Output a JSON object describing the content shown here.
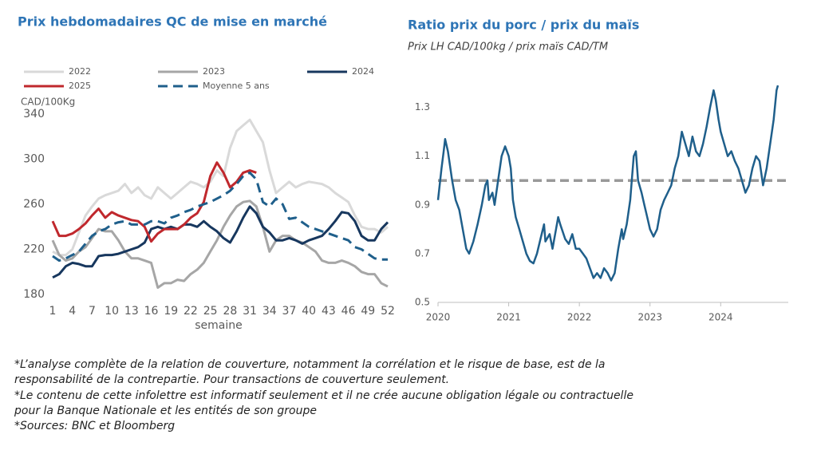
{
  "chart_data": [
    {
      "type": "line",
      "title": "Prix hebdomadaires QC de mise en marché",
      "ylabel": "CAD/100Kg",
      "xlabel": "semaine",
      "legend": "top",
      "grid": false,
      "x": [
        1,
        2,
        3,
        4,
        5,
        6,
        7,
        8,
        9,
        10,
        11,
        12,
        13,
        14,
        15,
        16,
        17,
        18,
        19,
        20,
        21,
        22,
        23,
        24,
        25,
        26,
        27,
        28,
        29,
        30,
        31,
        32,
        33,
        34,
        35,
        36,
        37,
        38,
        39,
        40,
        41,
        42,
        43,
        44,
        45,
        46,
        47,
        48,
        49,
        50,
        51,
        52
      ],
      "xlim": [
        1,
        52
      ],
      "xticks": [
        1,
        4,
        7,
        10,
        13,
        16,
        19,
        22,
        25,
        28,
        31,
        34,
        37,
        40,
        43,
        46,
        49,
        52
      ],
      "ylim": [
        180,
        340
      ],
      "yticks": [
        180,
        220,
        260,
        300,
        340
      ],
      "series": [
        {
          "name": "2022",
          "color": "#d9d9d9",
          "dash": false,
          "values": [
            218,
            215,
            215,
            220,
            235,
            250,
            258,
            265,
            268,
            270,
            272,
            278,
            270,
            275,
            268,
            265,
            275,
            270,
            265,
            270,
            275,
            280,
            278,
            275,
            280,
            290,
            285,
            310,
            325,
            330,
            335,
            325,
            315,
            290,
            270,
            275,
            280,
            275,
            278,
            280,
            279,
            278,
            275,
            270,
            266,
            262,
            250,
            240,
            238,
            238,
            235,
            240
          ]
        },
        {
          "name": "2023",
          "color": "#a6a6a6",
          "dash": false,
          "values": [
            228,
            215,
            210,
            212,
            218,
            222,
            230,
            238,
            236,
            236,
            228,
            218,
            212,
            212,
            210,
            208,
            186,
            190,
            190,
            193,
            192,
            198,
            202,
            208,
            218,
            228,
            240,
            250,
            258,
            262,
            263,
            258,
            240,
            218,
            228,
            232,
            232,
            228,
            226,
            222,
            218,
            210,
            208,
            208,
            210,
            208,
            205,
            200,
            198,
            198,
            190,
            187
          ]
        },
        {
          "name": "2024",
          "color": "#17375e",
          "dash": false,
          "values": [
            195,
            198,
            205,
            208,
            207,
            205,
            205,
            214,
            215,
            215,
            216,
            218,
            220,
            222,
            226,
            238,
            240,
            238,
            240,
            238,
            242,
            242,
            240,
            245,
            240,
            236,
            230,
            226,
            236,
            248,
            258,
            252,
            240,
            235,
            228,
            228,
            230,
            228,
            225,
            228,
            230,
            232,
            238,
            245,
            253,
            252,
            245,
            232,
            228,
            228,
            238,
            244
          ]
        },
        {
          "name": "2025",
          "color": "#c0282d",
          "dash": false,
          "values": [
            245,
            232,
            232,
            234,
            238,
            243,
            250,
            256,
            248,
            253,
            250,
            248,
            246,
            245,
            240,
            227,
            234,
            238,
            238,
            238,
            242,
            248,
            252,
            262,
            285,
            297,
            288,
            275,
            280,
            288,
            290,
            288,
            null,
            null,
            null,
            null,
            null,
            null,
            null,
            null,
            null,
            null,
            null,
            null,
            null,
            null,
            null,
            null,
            null,
            null,
            null,
            null
          ]
        },
        {
          "name": "Moyenne 5 ans",
          "color": "#1f5f8b",
          "dash": true,
          "values": [
            214,
            210,
            212,
            215,
            218,
            225,
            232,
            236,
            238,
            242,
            244,
            245,
            242,
            242,
            242,
            245,
            245,
            243,
            248,
            250,
            253,
            255,
            258,
            260,
            262,
            265,
            268,
            272,
            278,
            285,
            288,
            282,
            262,
            258,
            265,
            260,
            247,
            248,
            244,
            240,
            238,
            236,
            234,
            232,
            230,
            228,
            222,
            220,
            216,
            212,
            211,
            211
          ]
        }
      ]
    },
    {
      "type": "line",
      "title": "Ratio prix du porc / prix du maïs",
      "subtitle": "Prix LH CAD/100kg / prix maïs CAD/TM",
      "grid": false,
      "xlim": [
        2020,
        2024.9
      ],
      "xticks": [
        2020,
        2021,
        2022,
        2023,
        2024
      ],
      "ylim": [
        0.5,
        1.4
      ],
      "yticks": [
        0.5,
        0.7,
        0.9,
        1.1,
        1.3
      ],
      "reference_line": 1,
      "reference_color": "#999999",
      "x": [
        2020,
        2020.05,
        2020.08,
        2020.1,
        2020.14,
        2020.2,
        2020.25,
        2020.3,
        2020.35,
        2020.4,
        2020.44,
        2020.5,
        2020.56,
        2020.62,
        2020.67,
        2020.7,
        2020.72,
        2020.77,
        2020.8,
        2020.85,
        2020.9,
        2020.95,
        2021,
        2021.03,
        2021.06,
        2021.1,
        2021.15,
        2021.2,
        2021.25,
        2021.3,
        2021.35,
        2021.4,
        2021.45,
        2021.5,
        2021.52,
        2021.58,
        2021.62,
        2021.67,
        2021.7,
        2021.73,
        2021.8,
        2021.85,
        2021.9,
        2021.95,
        2022,
        2022.05,
        2022.1,
        2022.15,
        2022.2,
        2022.25,
        2022.3,
        2022.35,
        2022.4,
        2022.45,
        2022.5,
        2022.55,
        2022.6,
        2022.62,
        2022.67,
        2022.72,
        2022.77,
        2022.8,
        2022.83,
        2022.88,
        2022.92,
        2022.96,
        2023,
        2023.05,
        2023.1,
        2023.15,
        2023.2,
        2023.25,
        2023.3,
        2023.35,
        2023.4,
        2023.45,
        2023.5,
        2023.55,
        2023.6,
        2023.65,
        2023.7,
        2023.75,
        2023.8,
        2023.85,
        2023.9,
        2023.93,
        2023.97,
        2024,
        2024.05,
        2024.1,
        2024.15,
        2024.2,
        2024.25,
        2024.3,
        2024.35,
        2024.4,
        2024.45,
        2024.5,
        2024.55,
        2024.6,
        2024.65,
        2024.7,
        2024.75,
        2024.79,
        2024.81
      ],
      "series": [
        {
          "color": "#1f5f8b",
          "dash": false,
          "values": [
            0.92,
            1.05,
            1.12,
            1.17,
            1.12,
            1.0,
            0.92,
            0.88,
            0.8,
            0.72,
            0.7,
            0.75,
            0.82,
            0.9,
            0.98,
            1.0,
            0.92,
            0.95,
            0.9,
            1.0,
            1.1,
            1.14,
            1.1,
            1.05,
            0.92,
            0.85,
            0.8,
            0.75,
            0.7,
            0.67,
            0.66,
            0.7,
            0.76,
            0.82,
            0.75,
            0.78,
            0.72,
            0.8,
            0.85,
            0.82,
            0.76,
            0.74,
            0.78,
            0.72,
            0.72,
            0.7,
            0.68,
            0.64,
            0.6,
            0.62,
            0.6,
            0.64,
            0.62,
            0.59,
            0.62,
            0.72,
            0.8,
            0.76,
            0.82,
            0.92,
            1.1,
            1.12,
            1.0,
            0.95,
            0.9,
            0.85,
            0.8,
            0.77,
            0.8,
            0.88,
            0.92,
            0.95,
            0.98,
            1.05,
            1.1,
            1.2,
            1.15,
            1.1,
            1.18,
            1.12,
            1.1,
            1.15,
            1.22,
            1.3,
            1.37,
            1.33,
            1.25,
            1.2,
            1.15,
            1.1,
            1.12,
            1.08,
            1.05,
            1.0,
            0.95,
            0.98,
            1.05,
            1.1,
            1.08,
            0.98,
            1.05,
            1.15,
            1.25,
            1.37,
            1.39
          ]
        }
      ]
    }
  ],
  "notes": [
    "*L’analyse complète de la relation de couverture, notamment la corrélation et le risque de base, est de la",
    "responsabilité de la contrepartie. Pour transactions de couverture seulement.",
    "*Le contenu de cette infolettre est informatif seulement et il ne crée aucune obligation légale ou contractuelle",
    "pour la Banque Nationale et les entités de son groupe",
    "*Sources: BNC et Bloomberg"
  ]
}
